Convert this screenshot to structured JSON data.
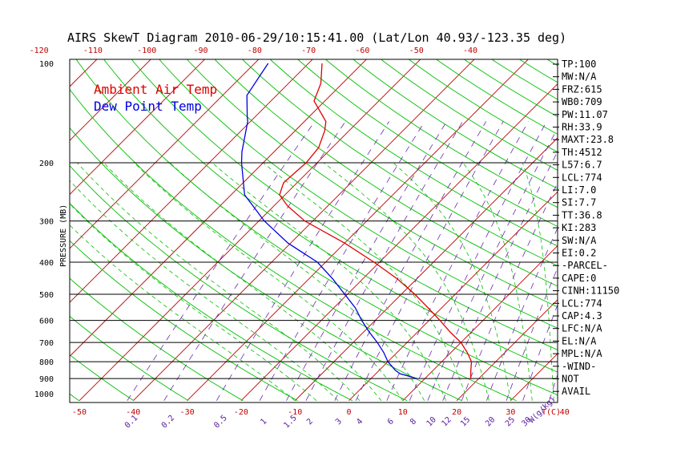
{
  "window": {
    "title": "AIRS SkewT Diagram 2010-06-29/10:15:41.00 (Lat/Lon 40.93/-123.35 deg)"
  },
  "colors": {
    "ambient": "#e00000",
    "dewpoint": "#0000e0",
    "isotherm": "#c00000",
    "dry_adiabat": "#00c000",
    "moist_adiabat": "#00c000",
    "mixing_ratio": "#6a2ab0",
    "isobar": "#000000"
  },
  "chart_data": {
    "type": "line",
    "title": "AIRS SkewT Diagram 2010-06-29/10:15:41.00 (Lat/Lon 40.93/-123.35 deg)",
    "ylabel": "PRESSURE (MB)",
    "xlabel_bottom": "T(C)",
    "mixing_ratio_label": "W(g/kg)",
    "y_scale": "log",
    "ylim": [
      1050,
      100
    ],
    "y_ticks": [
      "100",
      "200",
      "300",
      "400",
      "500",
      "600",
      "700",
      "800",
      "900",
      "1000"
    ],
    "x_ticks_bottom": [
      "-50",
      "-40",
      "-30",
      "-20",
      "-10",
      "0",
      "10",
      "20",
      "30",
      "40"
    ],
    "x_ticks_top": [
      "-120",
      "-110",
      "-100",
      "-90",
      "-80",
      "-70",
      "-60",
      "-50",
      "-40"
    ],
    "mixing_ratio_ticks": [
      "0.1",
      "0.2",
      "0.5",
      "1",
      "1.5",
      "2",
      "3",
      "4",
      "6",
      "8",
      "10",
      "12",
      "15",
      "20",
      "25",
      "30",
      "40"
    ],
    "grid": true,
    "legend": {
      "placement": "top-left",
      "entries": [
        "Ambient Air Temp",
        "Dew Point Temp"
      ]
    },
    "series": [
      {
        "name": "Ambient Air Temp",
        "points": [
          [
            900,
            18.5
          ],
          [
            850,
            17.0
          ],
          [
            800,
            15.5
          ],
          [
            750,
            13.0
          ],
          [
            700,
            10.0
          ],
          [
            650,
            6.0
          ],
          [
            600,
            2.0
          ],
          [
            550,
            -2.5
          ],
          [
            500,
            -7.5
          ],
          [
            450,
            -13.5
          ],
          [
            400,
            -21.0
          ],
          [
            350,
            -30.0
          ],
          [
            300,
            -41.5
          ],
          [
            270,
            -47.5
          ],
          [
            250,
            -51.0
          ],
          [
            230,
            -52.5
          ],
          [
            200,
            -52.0
          ],
          [
            180,
            -52.5
          ],
          [
            160,
            -54.5
          ],
          [
            150,
            -56.0
          ],
          [
            130,
            -62.0
          ],
          [
            115,
            -64.0
          ],
          [
            100,
            -67.5
          ]
        ]
      },
      {
        "name": "Dew Point Temp",
        "points": [
          [
            900,
            8.5
          ],
          [
            870,
            4.5
          ],
          [
            850,
            3.0
          ],
          [
            800,
            0.0
          ],
          [
            750,
            -2.5
          ],
          [
            700,
            -5.5
          ],
          [
            650,
            -9.0
          ],
          [
            600,
            -12.5
          ],
          [
            550,
            -16.0
          ],
          [
            500,
            -20.5
          ],
          [
            450,
            -25.5
          ],
          [
            400,
            -31.5
          ],
          [
            350,
            -40.5
          ],
          [
            300,
            -49.0
          ],
          [
            250,
            -57.5
          ],
          [
            200,
            -64.0
          ],
          [
            185,
            -66.0
          ],
          [
            150,
            -70.5
          ],
          [
            145,
            -71.5
          ],
          [
            125,
            -75.5
          ],
          [
            100,
            -77.5
          ]
        ]
      }
    ]
  },
  "stats": [
    "TP:100",
    "MW:N/A",
    "FRZ:615",
    "WB0:709",
    "PW:11.07",
    "RH:33.9",
    "MAXT:23.8",
    "TH:4512",
    "L57:6.7",
    "LCL:774",
    "LI:7.0",
    "SI:7.7",
    "TT:36.8",
    "KI:283",
    "SW:N/A",
    "EI:0.2",
    "-PARCEL-",
    "CAPE:0",
    "CINH:11150",
    "LCL:774",
    "CAP:4.3",
    "LFC:N/A",
    "EL:N/A",
    "MPL:N/A",
    "-WIND-",
    "NOT",
    "AVAIL"
  ]
}
